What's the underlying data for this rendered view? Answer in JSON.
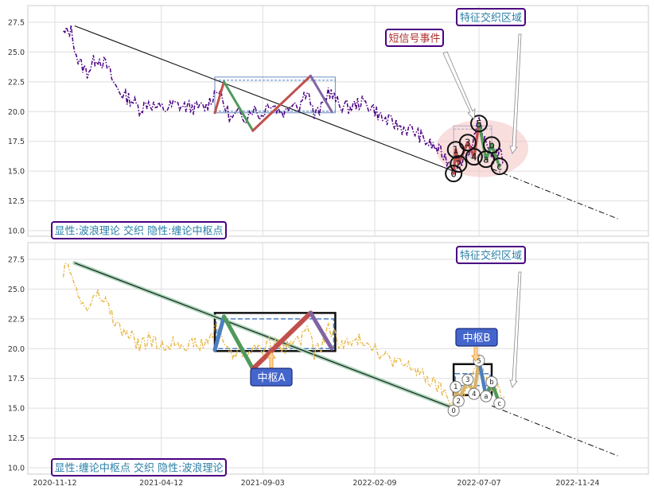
{
  "chart_data": [
    {
      "type": "line",
      "panel": "top",
      "legend_box": "显性:波浪理论 交织 隐性:缠论中枢点",
      "annotations": {
        "event": "短信号事件",
        "region": "特征交织区域"
      },
      "ylim": [
        9.5,
        29
      ],
      "yticks": [
        "10.0",
        "12.5",
        "15.0",
        "17.5",
        "20.0",
        "22.5",
        "25.0",
        "27.5"
      ],
      "xlim": [
        "2020-11-01",
        "2023-01-31"
      ],
      "grid": true,
      "colors": {
        "price": "#4b0082",
        "trend": "#111111",
        "up": "#c0504d",
        "down": "#4f9a5a",
        "last": "#8064a2",
        "box": "#6c8ebf",
        "region": "#f4c2c2",
        "label_border": "#4b0082",
        "label_text": "#2a7fa8",
        "event_text": "#b03030"
      },
      "series": [
        {
          "x": [
            "2020-11-24",
            "2020-12-05",
            "2020-12-15",
            "2020-12-28",
            "2021-01-10",
            "2021-01-25",
            "2021-02-05",
            "2021-02-18",
            "2021-03-01",
            "2021-03-12",
            "2021-03-25",
            "2021-04-06",
            "2021-04-18",
            "2021-05-01",
            "2021-05-15",
            "2021-06-01",
            "2021-06-15",
            "2021-07-01",
            "2021-07-10",
            "2021-07-20",
            "2021-07-31",
            "2021-08-10",
            "2021-08-20",
            "2021-09-01",
            "2021-09-12",
            "2021-09-25",
            "2021-10-05",
            "2021-10-15",
            "2021-10-25",
            "2021-11-05",
            "2021-11-15",
            "2021-11-25",
            "2021-12-05",
            "2021-12-20",
            "2022-01-05",
            "2022-01-20",
            "2022-02-05",
            "2022-02-20",
            "2022-03-05",
            "2022-03-20",
            "2022-04-05",
            "2022-04-20",
            "2022-05-05",
            "2022-05-20",
            "2022-06-01",
            "2022-06-10",
            "2022-06-20",
            "2022-06-30",
            "2022-07-07",
            "2022-07-15",
            "2022-07-25",
            "2022-08-05",
            "2022-08-12"
          ],
          "values": [
            26.5,
            26.8,
            24.2,
            23.3,
            24.6,
            23.8,
            22.2,
            21.3,
            21.0,
            20.2,
            20.8,
            20.3,
            20.2,
            20.6,
            20.4,
            20.3,
            20.4,
            22.0,
            20.6,
            19.4,
            19.8,
            19.6,
            20.3,
            19.6,
            20.8,
            20.2,
            19.9,
            21.0,
            20.5,
            22.0,
            19.6,
            20.2,
            21.8,
            20.6,
            20.3,
            20.8,
            20.4,
            19.4,
            19.1,
            18.6,
            18.4,
            17.6,
            17.0,
            16.2,
            15.3,
            15.8,
            16.4,
            17.8,
            19.0,
            17.4,
            16.6,
            16.4,
            16.0
          ]
        }
      ],
      "trendline": {
        "x": [
          "2020-12-10",
          "2022-06-01"
        ],
        "values": [
          27.2,
          15.0
        ]
      },
      "trend_extension": {
        "x": [
          "2022-07-25",
          "2023-01-20"
        ],
        "values": [
          15.2,
          11.0
        ]
      },
      "zhongshu_boxes": [
        {
          "x": [
            "2021-06-27",
            "2021-12-15"
          ],
          "y": [
            19.9,
            22.9
          ]
        },
        {
          "x": [
            "2022-06-01",
            "2022-07-25"
          ],
          "y": [
            16.2,
            18.8
          ]
        }
      ],
      "wave_points": [
        {
          "label": "0",
          "x": "2022-06-01",
          "value": 14.8
        },
        {
          "label": "1",
          "x": "2022-06-04",
          "value": 16.8
        },
        {
          "label": "2",
          "x": "2022-06-08",
          "value": 15.6
        },
        {
          "label": "3",
          "x": "2022-06-21",
          "value": 17.4
        },
        {
          "label": "4",
          "x": "2022-06-30",
          "value": 16.2
        },
        {
          "label": "5",
          "x": "2022-07-07",
          "value": 19.0
        },
        {
          "label": "a",
          "x": "2022-07-17",
          "value": 16.0
        },
        {
          "label": "b",
          "x": "2022-07-25",
          "value": 17.2
        },
        {
          "label": "c",
          "x": "2022-08-05",
          "value": 15.4
        }
      ]
    },
    {
      "type": "line",
      "panel": "bottom",
      "legend_box": "显性:缠论中枢点 交织 隐性:波浪理论",
      "annotations": {
        "zhongshu_a": "中枢A",
        "zhongshu_b": "中枢B",
        "region": "特征交织区域"
      },
      "ylim": [
        9.5,
        29
      ],
      "yticks": [
        "10.0",
        "12.5",
        "15.0",
        "17.5",
        "20.0",
        "22.5",
        "25.0",
        "27.5"
      ],
      "xticks": [
        "2020-11-12",
        "2021-04-12",
        "2021-09-03",
        "2022-02-09",
        "2022-07-07",
        "2022-11-24"
      ],
      "xlim": [
        "2020-11-01",
        "2023-01-31"
      ],
      "grid": true,
      "colors": {
        "price": "#e8b84a",
        "trend": "#111111",
        "trend_band": "#a8d5b8",
        "box": "#111111",
        "box_inner": "#4a7fc1",
        "up": "#c0504d",
        "down": "#4f9a5a",
        "blue": "#4a7fc1",
        "last": "#8064a2",
        "zhongshu_label_bg": "#4466cc",
        "arrow": "#f0a030"
      },
      "series": [
        {
          "x": [
            "2020-11-24",
            "2020-12-05",
            "2020-12-15",
            "2020-12-28",
            "2021-01-10",
            "2021-01-25",
            "2021-02-05",
            "2021-02-18",
            "2021-03-01",
            "2021-03-12",
            "2021-03-25",
            "2021-04-06",
            "2021-04-18",
            "2021-05-01",
            "2021-05-15",
            "2021-06-01",
            "2021-06-15",
            "2021-07-01",
            "2021-07-10",
            "2021-07-20",
            "2021-07-31",
            "2021-08-10",
            "2021-08-20",
            "2021-09-01",
            "2021-09-12",
            "2021-09-25",
            "2021-10-05",
            "2021-10-15",
            "2021-10-25",
            "2021-11-05",
            "2021-11-15",
            "2021-11-25",
            "2021-12-05",
            "2021-12-20",
            "2022-01-05",
            "2022-01-20",
            "2022-02-05",
            "2022-02-20",
            "2022-03-05",
            "2022-03-20",
            "2022-04-05",
            "2022-04-20",
            "2022-05-05",
            "2022-05-20",
            "2022-06-01",
            "2022-06-10",
            "2022-06-20",
            "2022-06-30",
            "2022-07-07",
            "2022-07-15",
            "2022-07-25",
            "2022-08-05",
            "2022-08-12"
          ],
          "values": [
            26.5,
            26.8,
            24.2,
            23.3,
            24.6,
            23.8,
            22.2,
            21.3,
            21.0,
            20.2,
            20.8,
            20.3,
            20.2,
            20.6,
            20.4,
            20.3,
            20.4,
            22.0,
            20.6,
            19.4,
            19.8,
            19.6,
            20.3,
            19.6,
            20.8,
            20.2,
            19.9,
            21.0,
            20.5,
            22.0,
            19.6,
            20.2,
            21.8,
            20.6,
            20.3,
            20.8,
            20.4,
            19.4,
            19.1,
            18.6,
            18.4,
            17.6,
            17.0,
            16.2,
            15.3,
            15.8,
            16.4,
            17.8,
            19.0,
            17.4,
            16.6,
            16.4,
            16.0
          ]
        }
      ],
      "trendline": {
        "x": [
          "2020-12-10",
          "2022-06-01"
        ],
        "values": [
          27.2,
          15.0
        ]
      },
      "trend_extension": {
        "x": [
          "2022-07-25",
          "2023-01-20"
        ],
        "values": [
          15.2,
          11.0
        ]
      },
      "zhongshu_boxes": [
        {
          "name": "中枢A",
          "x": [
            "2021-06-27",
            "2021-12-15"
          ],
          "y": [
            19.8,
            23.0
          ],
          "inner_y": [
            20.0,
            22.5
          ]
        },
        {
          "name": "中枢B",
          "x": [
            "2022-06-01",
            "2022-07-25"
          ],
          "y": [
            16.1,
            18.7
          ],
          "inner_y": [
            16.9,
            17.9
          ]
        }
      ],
      "wave_points": [
        {
          "label": "0",
          "x": "2022-06-01",
          "value": 14.8
        },
        {
          "label": "1",
          "x": "2022-06-04",
          "value": 16.8
        },
        {
          "label": "2",
          "x": "2022-06-08",
          "value": 15.6
        },
        {
          "label": "3",
          "x": "2022-06-21",
          "value": 17.4
        },
        {
          "label": "4",
          "x": "2022-06-30",
          "value": 16.2
        },
        {
          "label": "5",
          "x": "2022-07-07",
          "value": 19.0
        },
        {
          "label": "a",
          "x": "2022-07-17",
          "value": 16.0
        },
        {
          "label": "b",
          "x": "2022-07-25",
          "value": 17.2
        },
        {
          "label": "c",
          "x": "2022-08-05",
          "value": 15.4
        }
      ]
    }
  ]
}
